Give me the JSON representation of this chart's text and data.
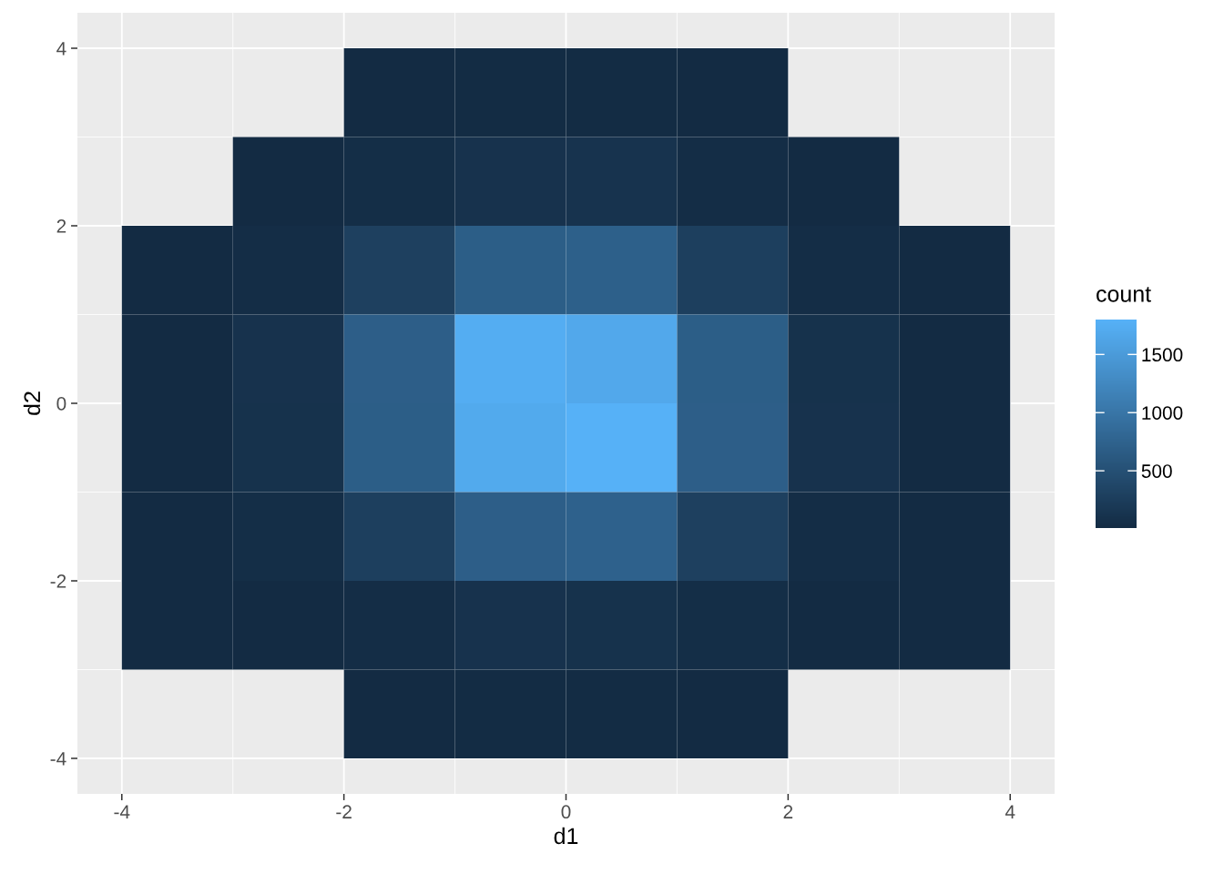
{
  "chart_data": {
    "type": "heatmap",
    "xlabel": "d1",
    "ylabel": "d2",
    "clabel": "count",
    "x": [
      -3.5,
      -2.5,
      -1.5,
      -0.5,
      0.5,
      1.5,
      2.5,
      3.5
    ],
    "y": [
      3.5,
      2.5,
      1.5,
      0.5,
      -0.5,
      -1.5,
      -2.5,
      -3.5
    ],
    "cells": [
      [
        null,
        null,
        10,
        20,
        18,
        10,
        null,
        null
      ],
      [
        null,
        12,
        45,
        110,
        115,
        42,
        10,
        null
      ],
      [
        10,
        40,
        290,
        690,
        710,
        280,
        42,
        10
      ],
      [
        12,
        110,
        700,
        1750,
        1680,
        690,
        105,
        12
      ],
      [
        12,
        105,
        690,
        1700,
        1800,
        700,
        110,
        10
      ],
      [
        10,
        45,
        280,
        700,
        730,
        290,
        40,
        10
      ],
      [
        10,
        12,
        42,
        110,
        100,
        44,
        10,
        8
      ],
      [
        null,
        null,
        12,
        15,
        15,
        10,
        null,
        null
      ]
    ],
    "clim": [
      8,
      1800
    ],
    "cticks": [
      500,
      1000,
      1500
    ],
    "colors": [
      "#132b43",
      "#56b1f7"
    ],
    "xlim": [
      -4.4,
      4.4
    ],
    "xticks": [
      -4,
      -2,
      0,
      2,
      4
    ],
    "ylim": [
      -4.4,
      4.4
    ],
    "yticks": [
      -4,
      -2,
      0,
      2,
      4
    ],
    "grid": true
  }
}
